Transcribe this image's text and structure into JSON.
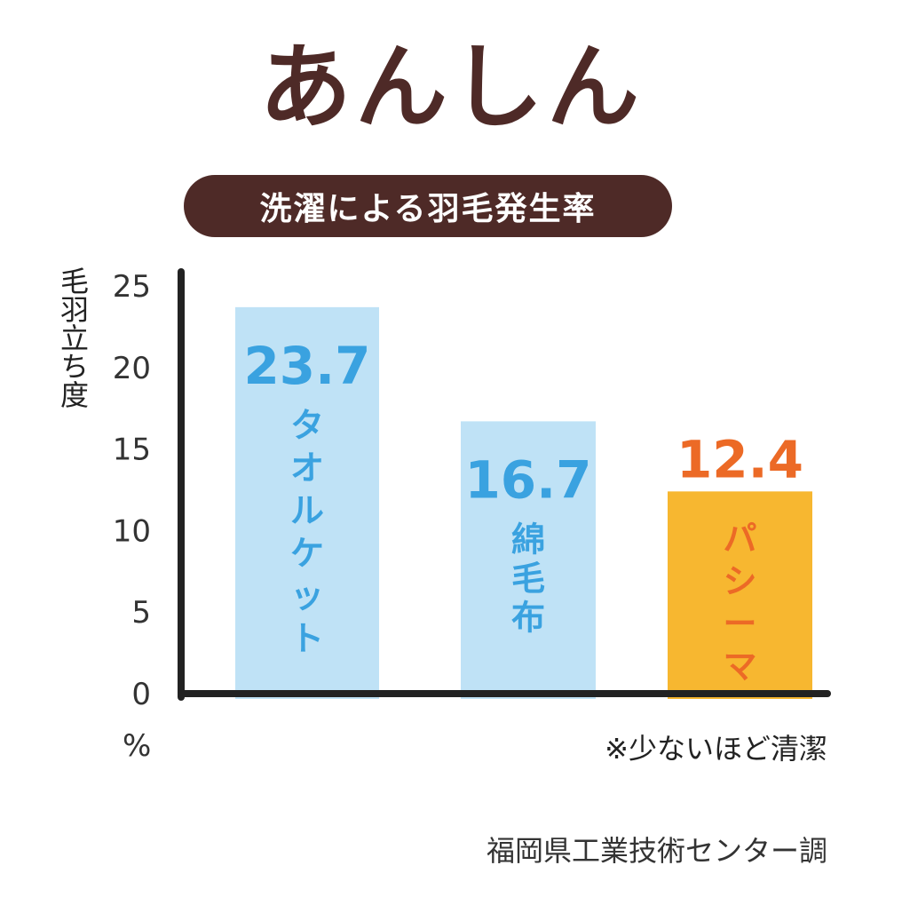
{
  "header": {
    "title": "あんしん",
    "subtitle": "洗濯による羽毛発生率"
  },
  "axis": {
    "ylabel": "毛羽立ち度",
    "unit": "%"
  },
  "note": "※少ないほど清潔",
  "source": "福岡県工業技術センター調",
  "colors": {
    "brown": "#4e2a27",
    "light_blue": "#bfe2f6",
    "blue_text": "#3aa2e0",
    "orange_bar": "#f7b730",
    "orange_text": "#ec6a26"
  },
  "chart_data": {
    "type": "bar",
    "title": "洗濯による羽毛発生率",
    "ylabel": "毛羽立ち度",
    "yunit": "%",
    "ylim": [
      0,
      25
    ],
    "yticks": [
      0,
      5,
      10,
      15,
      20,
      25
    ],
    "grid": false,
    "categories": [
      "タオルケット",
      "綿毛布",
      "パシーマ"
    ],
    "values": [
      23.7,
      16.7,
      12.4
    ],
    "value_labels": [
      "23.7",
      "16.7",
      "12.4"
    ]
  }
}
